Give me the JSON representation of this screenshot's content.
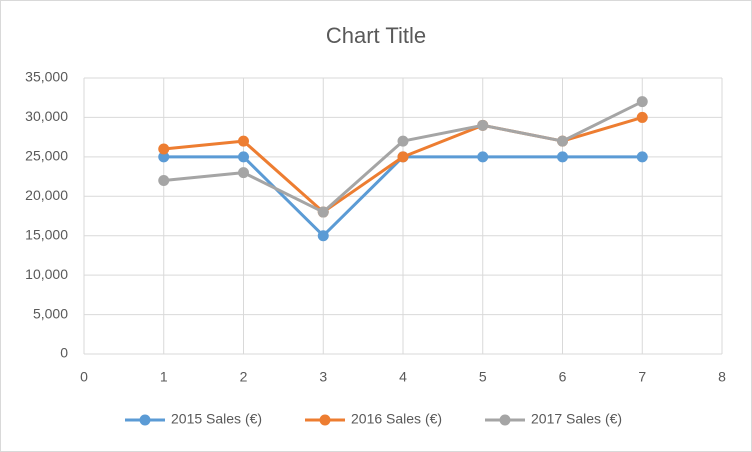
{
  "chart_data": {
    "type": "line",
    "title": "Chart Title",
    "x": [
      1,
      2,
      3,
      4,
      5,
      6,
      7
    ],
    "series": [
      {
        "name": "2015 Sales (€)",
        "color": "#5b9bd5",
        "values": [
          25000,
          25000,
          15000,
          25000,
          25000,
          25000,
          25000
        ]
      },
      {
        "name": "2016 Sales (€)",
        "color": "#ed7d31",
        "values": [
          26000,
          27000,
          18000,
          25000,
          29000,
          27000,
          30000
        ]
      },
      {
        "name": "2017 Sales (€)",
        "color": "#a5a5a5",
        "values": [
          22000,
          23000,
          18000,
          27000,
          29000,
          27000,
          32000
        ]
      }
    ],
    "xlim": [
      0,
      8
    ],
    "xticks": [
      0,
      1,
      2,
      3,
      4,
      5,
      6,
      7,
      8
    ],
    "ylim": [
      0,
      35000
    ],
    "yticks": [
      0,
      {
        "value": 5000,
        "label": "5,000"
      },
      {
        "value": 10000,
        "label": "10,000"
      },
      {
        "value": 15000,
        "label": "15,000"
      },
      {
        "value": 20000,
        "label": "20,000"
      },
      {
        "value": 25000,
        "label": "25,000"
      },
      {
        "value": 30000,
        "label": "30,000"
      },
      {
        "value": 35000,
        "label": "35,000"
      }
    ],
    "grid": true,
    "legend": "bottom"
  }
}
